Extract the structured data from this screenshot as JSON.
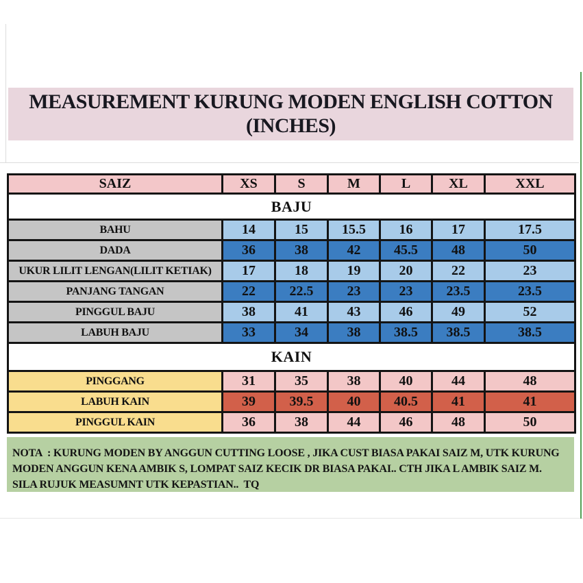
{
  "title": {
    "line1": "MEASUREMENT KURUNG MODEN ENGLISH COTTON",
    "line2": "(INCHES)"
  },
  "chart_data": {
    "type": "table",
    "title": "MEASUREMENT KURUNG MODEN ENGLISH COTTON (INCHES)",
    "columns": [
      "SAIZ",
      "XS",
      "S",
      "M",
      "L",
      "XL",
      "XXL"
    ],
    "sections": [
      {
        "name": "BAJU",
        "label_color": "gray",
        "rows": [
          {
            "label": "BAHU",
            "shade": "light",
            "values": [
              "14",
              "15",
              "15.5",
              "16",
              "17",
              "17.5"
            ]
          },
          {
            "label": "DADA",
            "shade": "dark",
            "values": [
              "36",
              "38",
              "42",
              "45.5",
              "48",
              "50"
            ]
          },
          {
            "label": "UKUR LILIT LENGAN(LILIT KETIAK)",
            "shade": "light",
            "values": [
              "17",
              "18",
              "19",
              "20",
              "22",
              "23"
            ]
          },
          {
            "label": "PANJANG TANGAN",
            "shade": "dark",
            "values": [
              "22",
              "22.5",
              "23",
              "23",
              "23.5",
              "23.5"
            ]
          },
          {
            "label": "PINGGUL BAJU",
            "shade": "light",
            "values": [
              "38",
              "41",
              "43",
              "46",
              "49",
              "52"
            ]
          },
          {
            "label": "LABUH BAJU",
            "shade": "dark",
            "values": [
              "33",
              "34",
              "38",
              "38.5",
              "38.5",
              "38.5"
            ]
          }
        ]
      },
      {
        "name": "KAIN",
        "label_color": "yellow",
        "rows": [
          {
            "label": "PINGGANG",
            "shade": "pink",
            "values": [
              "31",
              "35",
              "38",
              "40",
              "44",
              "48"
            ]
          },
          {
            "label": "LABUH KAIN",
            "shade": "salmon",
            "values": [
              "39",
              "39.5",
              "40",
              "40.5",
              "41",
              "41"
            ]
          },
          {
            "label": "PINGGUL KAIN",
            "shade": "pink",
            "values": [
              "36",
              "38",
              "44",
              "46",
              "48",
              "50"
            ]
          }
        ]
      }
    ],
    "note": "NOTA  : KURUNG MODEN BY ANGGUN CUTTING LOOSE , JIKA CUST BIASA PAKAI SAIZ M, UTK KURUNG MODEN ANGGUN KENA AMBIK S, LOMPAT SAIZ KECIK DR BIASA PAKAI.. CTH JIKA L AMBIK SAIZ M. SILA RUJUK MEASUMNT UTK KEPASTIAN..  TQ"
  },
  "colors": {
    "title-bg": "#e9d6dd",
    "header-pink": "#f3c7c9",
    "label-gray": "#c5c5c5",
    "light-blue": "#a8cbe9",
    "dark-blue": "#3b7dc1",
    "label-yellow": "#f9dd8e",
    "pink-cell": "#f3c7c7",
    "salmon-cell": "#d2604a",
    "note-green": "#b6d0a2",
    "edge-green": "#52a055"
  }
}
